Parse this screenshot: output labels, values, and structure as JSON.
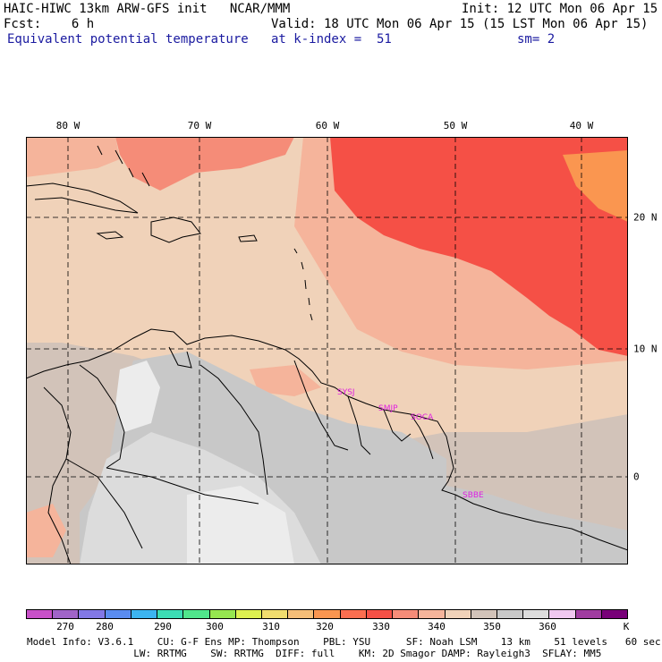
{
  "header": {
    "line1_left": "HAIC-HIWC 13km ARW-GFS init   NCAR/MMM",
    "line1_right": "Init: 12 UTC Mon 06 Apr 15",
    "line2_left": "Fcst:    6 h",
    "line2_right": "Valid: 18 UTC Mon 06 Apr 15 (15 LST Mon 06 Apr 15)",
    "field_name": "Equivalent potential temperature",
    "level": "at k-index =  51",
    "smoothing": "sm= 2"
  },
  "map": {
    "lon_labels": [
      "80 W",
      "70 W",
      "60 W",
      "50 W",
      "40 W"
    ],
    "lat_labels": [
      "20 N",
      "10 N",
      "0"
    ],
    "stations": [
      "SYSJ",
      "SMJP",
      "SOCA",
      "SBBE"
    ]
  },
  "colorbar": {
    "colors": [
      "#c850c8",
      "#a064c8",
      "#8278e6",
      "#5a8cf0",
      "#3cb4f0",
      "#3cdcb4",
      "#50e68c",
      "#96e650",
      "#dcf050",
      "#f0dc6e",
      "#f5be78",
      "#fa9650",
      "#fa6e50",
      "#f55046",
      "#f58c78",
      "#f5b49b",
      "#f0d2b9",
      "#d2c3b9",
      "#c8c8c8",
      "#dcdcdc",
      "#f0c8f0",
      "#a03ca0",
      "#780078"
    ],
    "ticks": [
      "270",
      "280",
      "290",
      "300",
      "310",
      "320",
      "330",
      "340",
      "350",
      "360",
      "K"
    ]
  },
  "info": {
    "line1": "Model Info: V3.6.1    CU: G-F Ens MP: Thompson    PBL: YSU      SF: Noah LSM    13 km    51 levels   60 sec",
    "line2": "                  LW: RRTMG    SW: RRTMG  DIFF: full    KM: 2D Smagor DAMP: Rayleigh3  SFLAY: MM5"
  }
}
